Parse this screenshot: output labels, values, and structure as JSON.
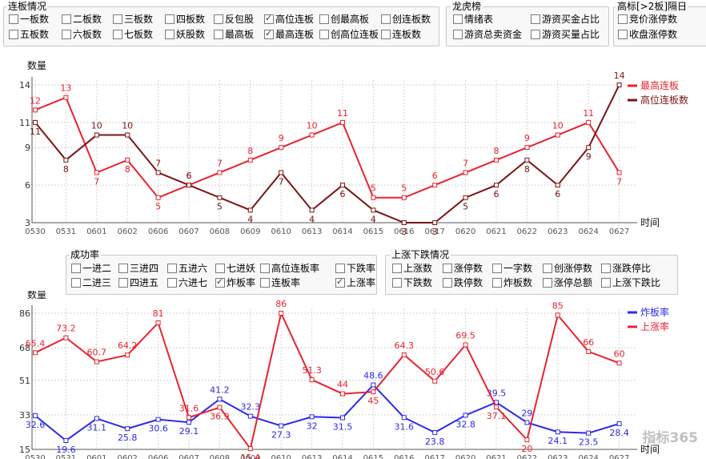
{
  "top": {
    "lianban": {
      "title": "连板情况",
      "items": [
        {
          "label": "一板数",
          "checked": false
        },
        {
          "label": "二板数",
          "checked": false
        },
        {
          "label": "三板数",
          "checked": false
        },
        {
          "label": "四板数",
          "checked": false
        },
        {
          "label": "反包股",
          "checked": false
        },
        {
          "label": "高位连板",
          "checked": true
        },
        {
          "label": "创最高板",
          "checked": false
        },
        {
          "label": "创连板数",
          "checked": false
        },
        {
          "label": "五板数",
          "checked": false
        },
        {
          "label": "六板数",
          "checked": false
        },
        {
          "label": "七板数",
          "checked": false
        },
        {
          "label": "妖股数",
          "checked": false
        },
        {
          "label": "最高板",
          "checked": false
        },
        {
          "label": "最高连板",
          "checked": true
        },
        {
          "label": "创高位连板",
          "checked": false
        },
        {
          "label": "连板数",
          "checked": false
        }
      ]
    },
    "longhu": {
      "title": "龙虎榜",
      "items": [
        {
          "label": "情绪表",
          "checked": false
        },
        {
          "label": "游资买金占比",
          "checked": false
        },
        {
          "label": "游资总卖资金",
          "checked": false
        },
        {
          "label": "游资买量占比",
          "checked": false
        }
      ]
    },
    "gaobiao": {
      "title": "高标[>2板]隔日",
      "items": [
        {
          "label": "竞价涨停数",
          "checked": false
        },
        {
          "label": "收盘涨停数",
          "checked": false
        }
      ]
    }
  },
  "mid": {
    "chenggong": {
      "title": "成功率",
      "items": [
        {
          "label": "一进二",
          "checked": false
        },
        {
          "label": "三进四",
          "checked": false
        },
        {
          "label": "五进六",
          "checked": false
        },
        {
          "label": "七进妖",
          "checked": false
        },
        {
          "label": "高位连板率",
          "checked": false
        },
        {
          "label": "下跌率",
          "checked": false
        },
        {
          "label": "二进三",
          "checked": false
        },
        {
          "label": "四进五",
          "checked": false
        },
        {
          "label": "六进七",
          "checked": false
        },
        {
          "label": "炸板率",
          "checked": true
        },
        {
          "label": "连板率",
          "checked": false
        },
        {
          "label": "上涨率",
          "checked": true
        }
      ]
    },
    "zhangdie": {
      "title": "上涨下跌情况",
      "items": [
        {
          "label": "上涨数",
          "checked": false
        },
        {
          "label": "涨停数",
          "checked": false
        },
        {
          "label": "一字数",
          "checked": false
        },
        {
          "label": "创涨停数",
          "checked": false
        },
        {
          "label": "涨跌停比",
          "checked": false
        },
        {
          "label": "下跌数",
          "checked": false
        },
        {
          "label": "跌停数",
          "checked": false
        },
        {
          "label": "炸板数",
          "checked": false
        },
        {
          "label": "涨停总额",
          "checked": false
        },
        {
          "label": "上涨下跌比",
          "checked": false
        }
      ]
    }
  },
  "watermark": "指标365",
  "colors": {
    "bright_red": "#e8232f",
    "dark_red": "#7a1414",
    "blue": "#2a2ae8",
    "grid": "#d0d0d0"
  },
  "chart_data": [
    {
      "type": "line",
      "ylabel": "数量",
      "xlabel": "时间",
      "x": [
        "0530",
        "0531",
        "0601",
        "0602",
        "0606",
        "0607",
        "0608",
        "0609",
        "0610",
        "0613",
        "0614",
        "0615",
        "0616",
        "0617",
        "0620",
        "0621",
        "0622",
        "0623",
        "0624",
        "0627"
      ],
      "yticks": [
        3,
        6,
        9,
        11,
        14
      ],
      "ylim": [
        3,
        14
      ],
      "grid": true,
      "legend_position": "top-right",
      "series": [
        {
          "name": "最高连板",
          "color": "#e8232f",
          "values": [
            12,
            13,
            7,
            8,
            5,
            6,
            7,
            8,
            9,
            10,
            11,
            5,
            5,
            6,
            7,
            8,
            9,
            10,
            11,
            7
          ]
        },
        {
          "name": "高位连板数",
          "color": "#7a1414",
          "values": [
            11,
            8,
            10,
            10,
            7,
            6,
            5,
            4,
            7,
            4,
            6,
            4,
            3,
            3,
            5,
            6,
            8,
            6,
            9,
            14
          ]
        }
      ]
    },
    {
      "type": "line",
      "ylabel": "数量",
      "xlabel": "时间",
      "x": [
        "0530",
        "0531",
        "0601",
        "0602",
        "0606",
        "0607",
        "0608",
        "0609",
        "0610",
        "0613",
        "0614",
        "0615",
        "0616",
        "0617",
        "0620",
        "0621",
        "0622",
        "0623",
        "0624",
        "0627"
      ],
      "yticks": [
        15,
        33,
        51,
        68,
        86
      ],
      "ylim": [
        15,
        86
      ],
      "grid": true,
      "legend_position": "top-right",
      "series": [
        {
          "name": "炸板率",
          "color": "#2a2ae8",
          "values": [
            32.6,
            19.6,
            31.1,
            25.8,
            30.6,
            29.1,
            41.2,
            32.3,
            27.3,
            32,
            31.5,
            48.6,
            31.6,
            23.8,
            32.8,
            39.5,
            29,
            24.1,
            23.5,
            28.4
          ]
        },
        {
          "name": "上涨率",
          "color": "#e8232f",
          "values": [
            65.4,
            73.2,
            60.7,
            64.2,
            81,
            31.6,
            36.9,
            15.4,
            86,
            51.3,
            44,
            45,
            64.3,
            50.6,
            69.5,
            37.1,
            20,
            85,
            66,
            60
          ]
        }
      ]
    }
  ]
}
